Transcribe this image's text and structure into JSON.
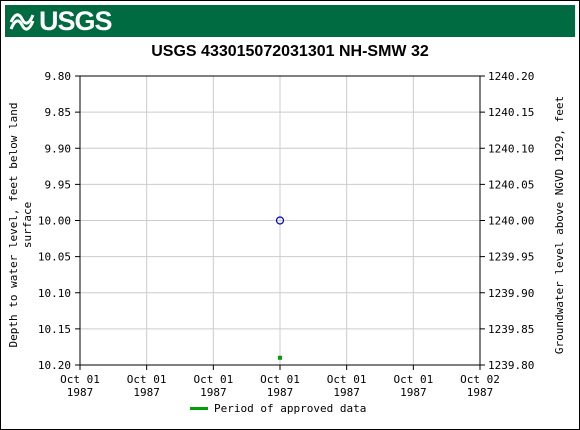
{
  "header": {
    "logo_text": "USGS",
    "logo_color": "#006a41"
  },
  "chart_data": {
    "type": "scatter",
    "title": "USGS 433015072031301 NH-SMW   32",
    "ylabel_left": "Depth to water level, feet below land surface",
    "ylabel_left_line1": "Depth to water level, feet below land",
    "ylabel_left_line2": "surface",
    "ylabel_right": "Groundwater level above NGVD 1929, feet",
    "y_left_range": [
      9.8,
      10.2
    ],
    "y_left_inverted": true,
    "y_right_range": [
      1239.8,
      1240.2
    ],
    "y_left_ticks": [
      "9.80",
      "9.85",
      "9.90",
      "9.95",
      "10.00",
      "10.05",
      "10.10",
      "10.15",
      "10.20"
    ],
    "y_right_ticks": [
      "1240.20",
      "1240.15",
      "1240.10",
      "1240.05",
      "1240.00",
      "1239.95",
      "1239.90",
      "1239.85",
      "1239.80"
    ],
    "x_ticks": [
      {
        "line1": "Oct 01",
        "line2": "1987"
      },
      {
        "line1": "Oct 01",
        "line2": "1987"
      },
      {
        "line1": "Oct 01",
        "line2": "1987"
      },
      {
        "line1": "Oct 01",
        "line2": "1987"
      },
      {
        "line1": "Oct 01",
        "line2": "1987"
      },
      {
        "line1": "Oct 01",
        "line2": "1987"
      },
      {
        "line1": "Oct 02",
        "line2": "1987"
      }
    ],
    "series": [
      {
        "marker": "circle-open",
        "color": "#0000cc",
        "points": [
          {
            "x_tick_index": 3,
            "y": 10.0
          }
        ]
      },
      {
        "name": "Period of approved data",
        "marker": "square",
        "color": "#00a000",
        "points": [
          {
            "x_tick_index": 3,
            "y": 10.19
          }
        ]
      }
    ],
    "grid": true,
    "legend": {
      "label": "Period of approved data",
      "color": "#00a000",
      "placement": "bottom-center"
    }
  }
}
